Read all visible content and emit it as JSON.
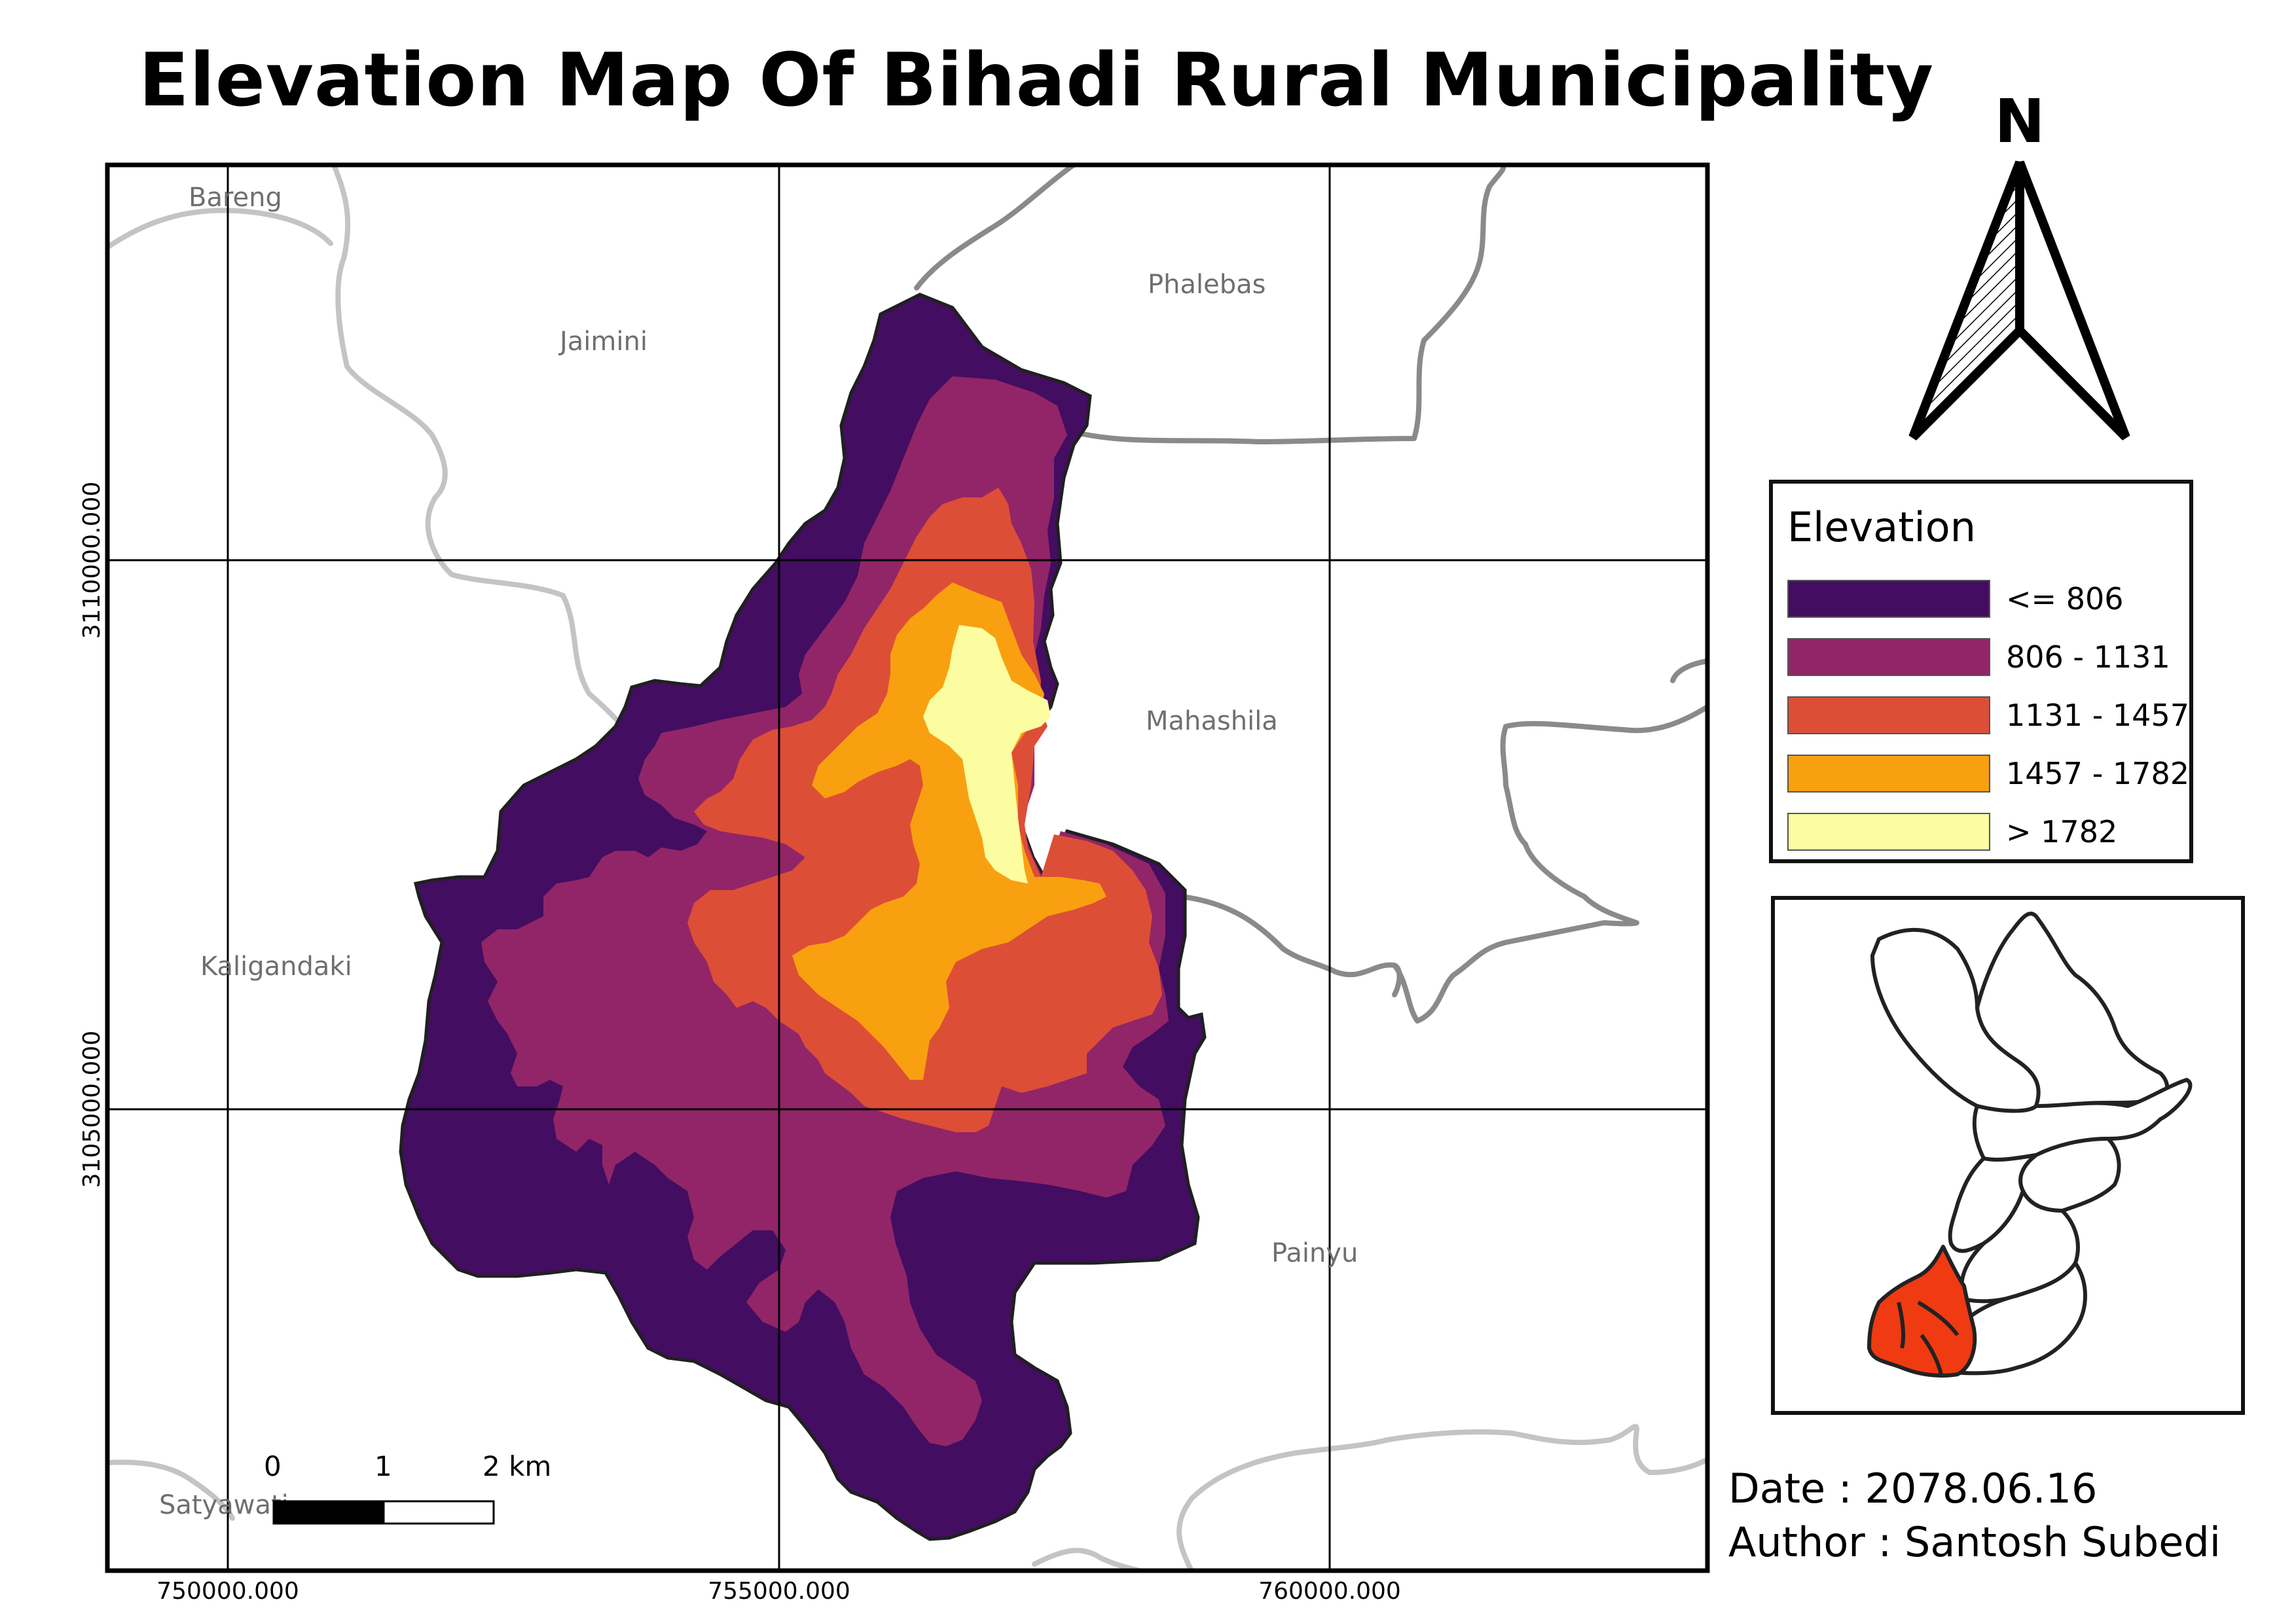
{
  "title": "Elevation Map Of Bihadi Rural Municipality",
  "north_arrow": {
    "label": "N"
  },
  "legend": {
    "title": "Elevation",
    "items": [
      {
        "label": "<= 806",
        "color": "#430d61"
      },
      {
        "label": "806 - 1131",
        "color": "#912568"
      },
      {
        "label": "1131 - 1457",
        "color": "#dd4e37"
      },
      {
        "label": "1457 - 1782",
        "color": "#f9a010"
      },
      {
        "label": "> 1782",
        "color": "#fbfda0"
      }
    ]
  },
  "place_labels": [
    "Bareng",
    "Jaimini",
    "Phalebas",
    "Mahashila",
    "Kaligandaki",
    "Painyu",
    "Satyawati"
  ],
  "axis": {
    "x_ticks": [
      "750000.000",
      "755000.000",
      "760000.000"
    ],
    "y_ticks": [
      "3110000.000",
      "3105000.000"
    ]
  },
  "scale_bar": {
    "labels": [
      "0",
      "1",
      "2 km"
    ]
  },
  "date_text": "Date : 2078.06.16",
  "author_text": "Author : Santosh Subedi",
  "colors": {
    "boundary_gray": "#8a8a8a",
    "light_gray": "#c4c4c4",
    "highlight_red": "#f03a12"
  }
}
